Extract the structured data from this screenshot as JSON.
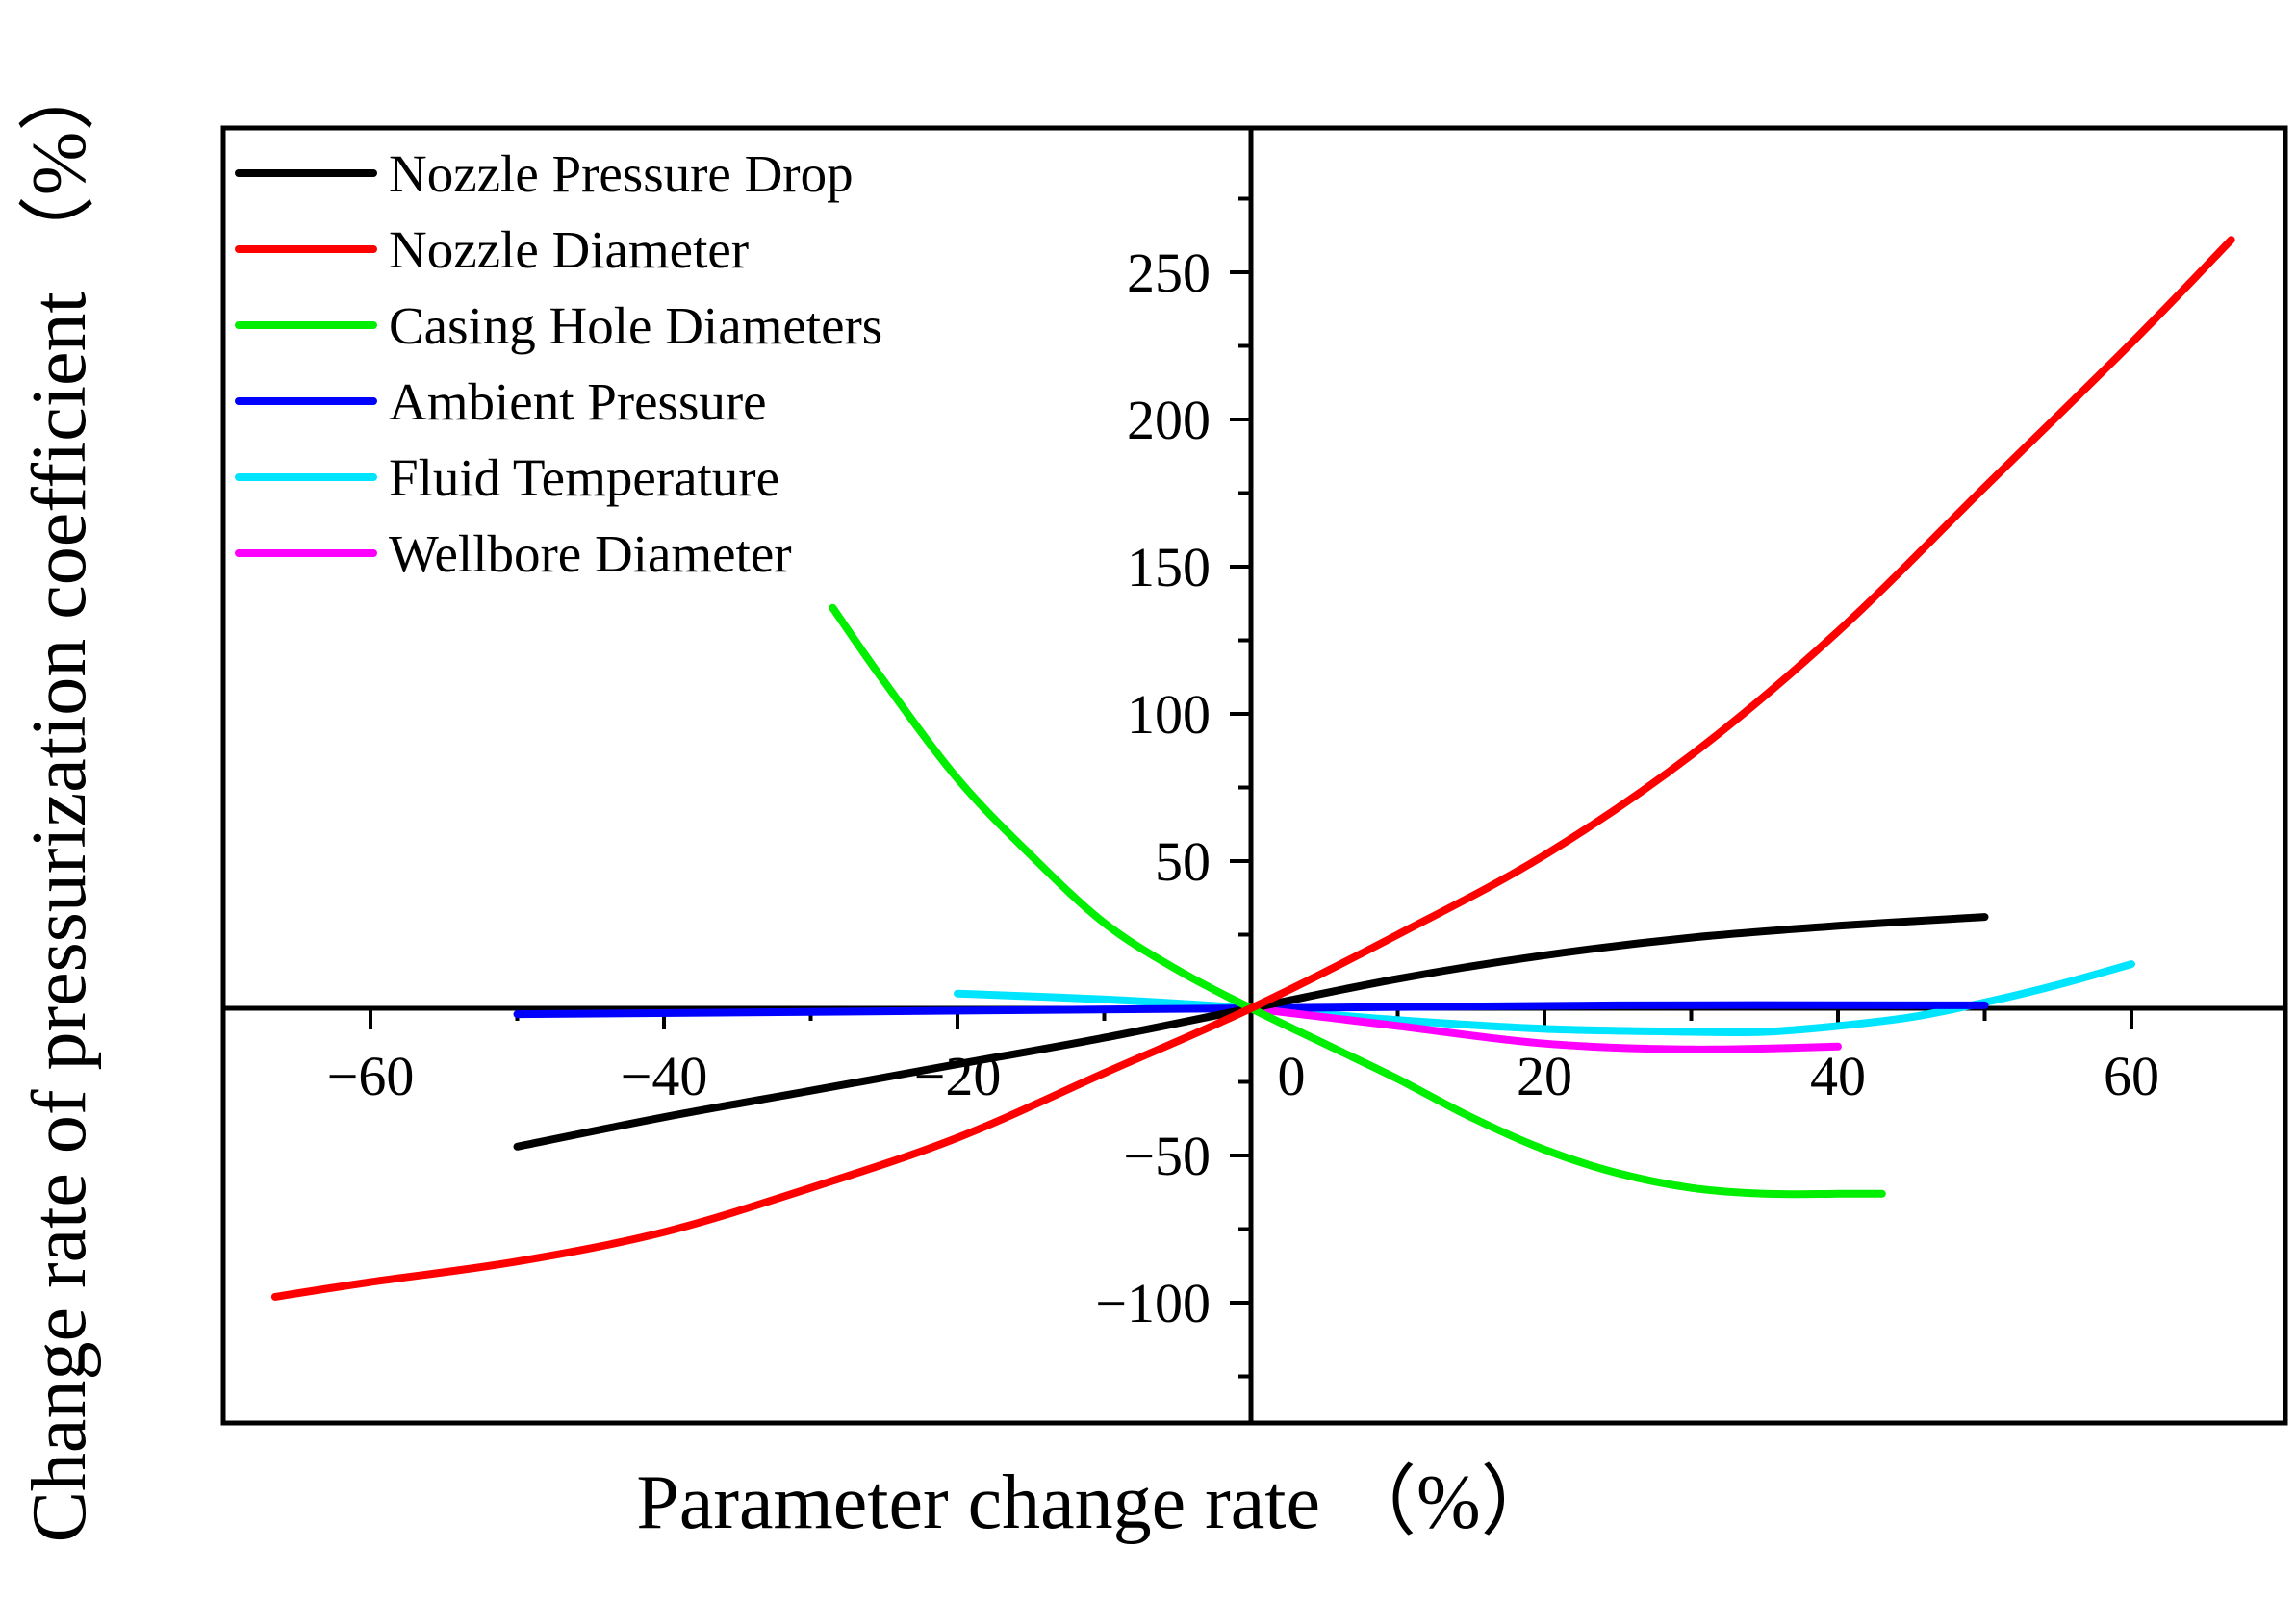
{
  "chart_data": {
    "type": "line",
    "title": "",
    "xlabel": "Parameter change rate （%）",
    "ylabel": "Change rate of pressurization coefficient （%）",
    "xlim": [
      -70,
      70
    ],
    "ylim": [
      -140,
      300
    ],
    "x_ticks": [
      -60,
      -40,
      -20,
      0,
      20,
      40,
      60
    ],
    "x_tick_labels": [
      "−60",
      "−40",
      "−20",
      "0",
      "20",
      "40",
      "60"
    ],
    "y_ticks": [
      -100,
      -50,
      50,
      100,
      150,
      200,
      250
    ],
    "y_tick_labels": [
      "−100",
      "−50",
      "50",
      "100",
      "150",
      "200",
      "250"
    ],
    "legend_position": "top-left",
    "grid": false,
    "series": [
      {
        "name": "Nozzle Pressure Drop",
        "color": "#000000",
        "points": [
          [
            -50,
            -47
          ],
          [
            -40,
            -37
          ],
          [
            -30,
            -28
          ],
          [
            -20,
            -19
          ],
          [
            -10,
            -10
          ],
          [
            0,
            0
          ],
          [
            10,
            10
          ],
          [
            20,
            18
          ],
          [
            30,
            24
          ],
          [
            40,
            28
          ],
          [
            50,
            31
          ]
        ]
      },
      {
        "name": "Nozzle Diameter",
        "color": "#ff0000",
        "points": [
          [
            -66.5,
            -98
          ],
          [
            -60,
            -93
          ],
          [
            -50,
            -86
          ],
          [
            -40,
            -76
          ],
          [
            -30,
            -61
          ],
          [
            -20,
            -44
          ],
          [
            -10,
            -22
          ],
          [
            0,
            0
          ],
          [
            10,
            25
          ],
          [
            20,
            52
          ],
          [
            30,
            86
          ],
          [
            40,
            128
          ],
          [
            50,
            177
          ],
          [
            60,
            226
          ],
          [
            66.8,
            261
          ]
        ]
      },
      {
        "name": "Casing Hole Diameters",
        "color": "#00ee00",
        "points": [
          [
            -28.5,
            136
          ],
          [
            -25,
            111
          ],
          [
            -20,
            78
          ],
          [
            -15,
            52
          ],
          [
            -10,
            29
          ],
          [
            -5,
            13
          ],
          [
            0,
            0
          ],
          [
            5,
            -12
          ],
          [
            10,
            -24
          ],
          [
            15,
            -37
          ],
          [
            20,
            -48
          ],
          [
            25,
            -56
          ],
          [
            30,
            -61
          ],
          [
            35,
            -63
          ],
          [
            40,
            -63
          ],
          [
            43,
            -63
          ]
        ]
      },
      {
        "name": "Ambient Pressure",
        "color": "#0000ff",
        "points": [
          [
            -50,
            -2
          ],
          [
            -25,
            -1
          ],
          [
            0,
            0
          ],
          [
            25,
            1
          ],
          [
            50,
            1
          ]
        ]
      },
      {
        "name": "Fluid Temperature",
        "color": "#00e5ff",
        "points": [
          [
            -20,
            5
          ],
          [
            -10,
            3
          ],
          [
            0,
            0
          ],
          [
            10,
            -4
          ],
          [
            20,
            -7
          ],
          [
            30,
            -8
          ],
          [
            35,
            -8
          ],
          [
            40,
            -6
          ],
          [
            45,
            -3
          ],
          [
            50,
            2
          ],
          [
            55,
            8
          ],
          [
            60,
            15
          ]
        ]
      },
      {
        "name": "Wellbore Diameter",
        "color": "#ff00ff",
        "points": [
          [
            0,
            0
          ],
          [
            10,
            -6
          ],
          [
            20,
            -12
          ],
          [
            30,
            -14
          ],
          [
            40,
            -13
          ]
        ]
      }
    ]
  }
}
